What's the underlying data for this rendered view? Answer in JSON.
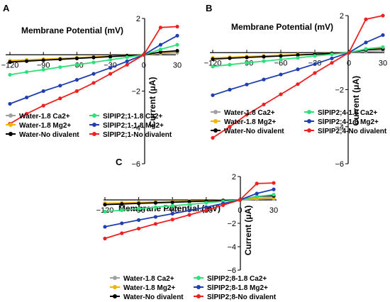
{
  "chart_data": [
    {
      "type": "line",
      "panel": "A",
      "xlabel": "Membrane Potential (mV)",
      "ylabel": "Current (μA)",
      "xlim": [
        -120,
        30
      ],
      "ylim": [
        -6,
        2
      ],
      "x_ticks": [
        -120,
        -90,
        -60,
        -30,
        0,
        30
      ],
      "x_tick_labels": [
        "−120",
        "−90",
        "−60",
        "−30",
        "0",
        "30"
      ],
      "y_ticks": [
        -6,
        -4,
        -2,
        0,
        2
      ],
      "y_tick_labels": [
        "−6",
        "−4",
        "−2",
        "0",
        "2"
      ],
      "grid": false,
      "legend_position": "bottom",
      "x": [
        -120,
        -105,
        -90,
        -75,
        -60,
        -45,
        -30,
        -15,
        0,
        15,
        30
      ],
      "series": [
        {
          "name": "Water-1.8 Ca2+",
          "color": "#a0a0a0",
          "values": [
            -0.35,
            -0.3,
            -0.26,
            -0.22,
            -0.18,
            -0.14,
            -0.1,
            -0.06,
            0,
            0.06,
            0.12
          ]
        },
        {
          "name": "Water-1.8 Mg2+",
          "color": "#f0b400",
          "values": [
            -0.32,
            -0.28,
            -0.24,
            -0.2,
            -0.16,
            -0.12,
            -0.08,
            -0.04,
            0,
            0.12,
            0.2
          ]
        },
        {
          "name": "Water-No divalent",
          "color": "#000000",
          "values": [
            -0.4,
            -0.35,
            -0.3,
            -0.25,
            -0.2,
            -0.15,
            -0.1,
            -0.05,
            0,
            0.15,
            0.22
          ]
        },
        {
          "name": "SlPIP2;1-1.8 Ca2+",
          "color": "#2fe07a",
          "values": [
            -1.1,
            -0.95,
            -0.82,
            -0.68,
            -0.55,
            -0.42,
            -0.28,
            -0.14,
            0,
            0.3,
            0.55
          ]
        },
        {
          "name": "SlPIP2;1-1.8 Mg2+",
          "color": "#1f3fb0",
          "values": [
            -2.7,
            -2.35,
            -2.0,
            -1.7,
            -1.38,
            -1.05,
            -0.72,
            -0.36,
            0,
            0.55,
            1.05
          ]
        },
        {
          "name": "SlPIP2;1-No divalent",
          "color": "#ee2020",
          "values": [
            -3.8,
            -3.25,
            -2.8,
            -2.4,
            -2.0,
            -1.55,
            -1.05,
            -0.55,
            0,
            1.5,
            1.55
          ]
        }
      ]
    },
    {
      "type": "line",
      "panel": "B",
      "xlabel": "Membrane Potential (mV)",
      "ylabel": "Current (μA)",
      "xlim": [
        -120,
        30
      ],
      "ylim": [
        -6,
        2
      ],
      "x_ticks": [
        -120,
        -90,
        -60,
        -30,
        0,
        30
      ],
      "x_tick_labels": [
        "−120",
        "−90",
        "−60",
        "−30",
        "0",
        "30"
      ],
      "y_ticks": [
        -6,
        -4,
        -2,
        0,
        2
      ],
      "y_tick_labels": [
        "−6",
        "−4",
        "−2",
        "0",
        "2"
      ],
      "grid": false,
      "legend_position": "bottom",
      "x": [
        -120,
        -105,
        -90,
        -75,
        -60,
        -45,
        -30,
        -15,
        0,
        15,
        30
      ],
      "series": [
        {
          "name": "Water-1.8 Ca2+",
          "color": "#a0a0a0",
          "values": [
            -0.3,
            -0.26,
            -0.22,
            -0.18,
            -0.15,
            -0.11,
            -0.08,
            -0.04,
            0,
            0.05,
            0.1
          ]
        },
        {
          "name": "Water-1.8 Mg2+",
          "color": "#f0b400",
          "values": [
            -0.28,
            -0.25,
            -0.21,
            -0.18,
            -0.14,
            -0.1,
            -0.07,
            -0.03,
            0,
            0.18,
            0.25
          ]
        },
        {
          "name": "Water-No divalent",
          "color": "#000000",
          "values": [
            -0.35,
            -0.3,
            -0.26,
            -0.22,
            -0.18,
            -0.13,
            -0.09,
            -0.04,
            0,
            0.15,
            0.2
          ]
        },
        {
          "name": "SlPIP2;4-1.8 Ca2+",
          "color": "#2fe07a",
          "values": [
            -0.75,
            -0.65,
            -0.55,
            -0.46,
            -0.37,
            -0.28,
            -0.18,
            -0.09,
            0,
            0.2,
            0.3
          ]
        },
        {
          "name": "SlPIP2;4-1.8 Mg2+",
          "color": "#1f3fb0",
          "values": [
            -2.3,
            -2.0,
            -1.72,
            -1.45,
            -1.18,
            -0.9,
            -0.62,
            -0.31,
            0,
            0.55,
            0.95
          ]
        },
        {
          "name": "SlPIP2;4-No divalent",
          "color": "#ee2020",
          "values": [
            -4.6,
            -4.0,
            -3.35,
            -2.8,
            -2.25,
            -1.7,
            -1.1,
            -0.55,
            0,
            1.8,
            2.0
          ]
        }
      ]
    },
    {
      "type": "line",
      "panel": "C",
      "xlabel": "Membrane Potential (mV)",
      "ylabel": "Current (μA)",
      "xlim": [
        -120,
        30
      ],
      "ylim": [
        -6,
        2
      ],
      "x_ticks": [
        -120,
        -90,
        -60,
        -30,
        0,
        30
      ],
      "x_tick_labels": [
        "−120",
        "−90",
        "−60",
        "−30",
        "0",
        "30"
      ],
      "y_ticks": [
        -6,
        -4,
        -2,
        0,
        2
      ],
      "y_tick_labels": [
        "−6",
        "−4",
        "−2",
        "0",
        "2"
      ],
      "grid": false,
      "legend_position": "bottom",
      "x": [
        -120,
        -105,
        -90,
        -75,
        -60,
        -45,
        -30,
        -15,
        0,
        15,
        30
      ],
      "series": [
        {
          "name": "Water-1.8 Ca2+",
          "color": "#a0a0a0",
          "values": [
            -0.3,
            -0.26,
            -0.22,
            -0.18,
            -0.15,
            -0.11,
            -0.08,
            -0.04,
            0,
            0.06,
            0.1
          ]
        },
        {
          "name": "Water-1.8 Mg2+",
          "color": "#f0b400",
          "values": [
            -0.28,
            -0.25,
            -0.21,
            -0.18,
            -0.14,
            -0.1,
            -0.07,
            -0.03,
            0,
            0.15,
            0.2
          ]
        },
        {
          "name": "Water-No divalent",
          "color": "#000000",
          "values": [
            -0.4,
            -0.35,
            -0.3,
            -0.25,
            -0.2,
            -0.15,
            -0.1,
            -0.05,
            0,
            0.3,
            0.35
          ]
        },
        {
          "name": "SlPIP2;8-1.8 Ca2+",
          "color": "#2fe07a",
          "values": [
            -1.0,
            -0.88,
            -0.75,
            -0.62,
            -0.5,
            -0.38,
            -0.25,
            -0.12,
            0,
            0.3,
            0.45
          ]
        },
        {
          "name": "SlPIP2;8-1.8 Mg2+",
          "color": "#1f3fb0",
          "values": [
            -2.3,
            -2.0,
            -1.72,
            -1.45,
            -1.18,
            -0.9,
            -0.62,
            -0.31,
            0,
            0.55,
            0.9
          ]
        },
        {
          "name": "SlPIP2;8-No divalent",
          "color": "#ee2020",
          "values": [
            -3.3,
            -2.85,
            -2.45,
            -2.05,
            -1.68,
            -1.28,
            -0.88,
            -0.45,
            0,
            1.4,
            1.45
          ]
        }
      ]
    }
  ]
}
